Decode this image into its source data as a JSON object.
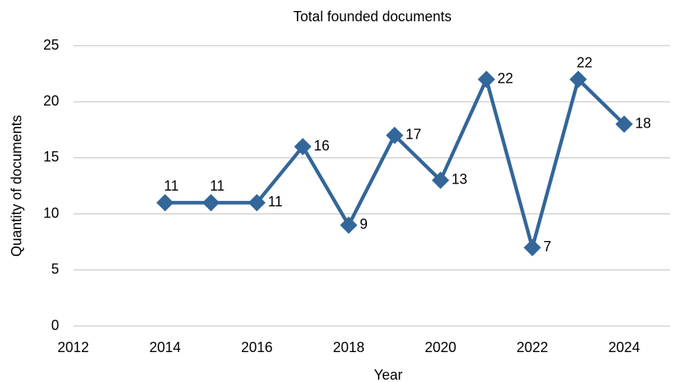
{
  "chart_data": {
    "type": "line",
    "title": "Total founded documents",
    "x_label": "Year",
    "y_label": "Quantity of documents",
    "x": [
      2014,
      2015,
      2016,
      2017,
      2018,
      2019,
      2020,
      2021,
      2022,
      2023,
      2024
    ],
    "values": [
      11,
      11,
      11,
      16,
      9,
      17,
      13,
      22,
      7,
      22,
      18
    ],
    "color": "#336699",
    "xlim": [
      2012,
      2025
    ],
    "xticks": [
      2012,
      2014,
      2016,
      2018,
      2020,
      2022,
      2024
    ],
    "ylim": [
      0,
      25
    ],
    "yticks": [
      0,
      5,
      10,
      15,
      20,
      25
    ],
    "grid": true
  }
}
